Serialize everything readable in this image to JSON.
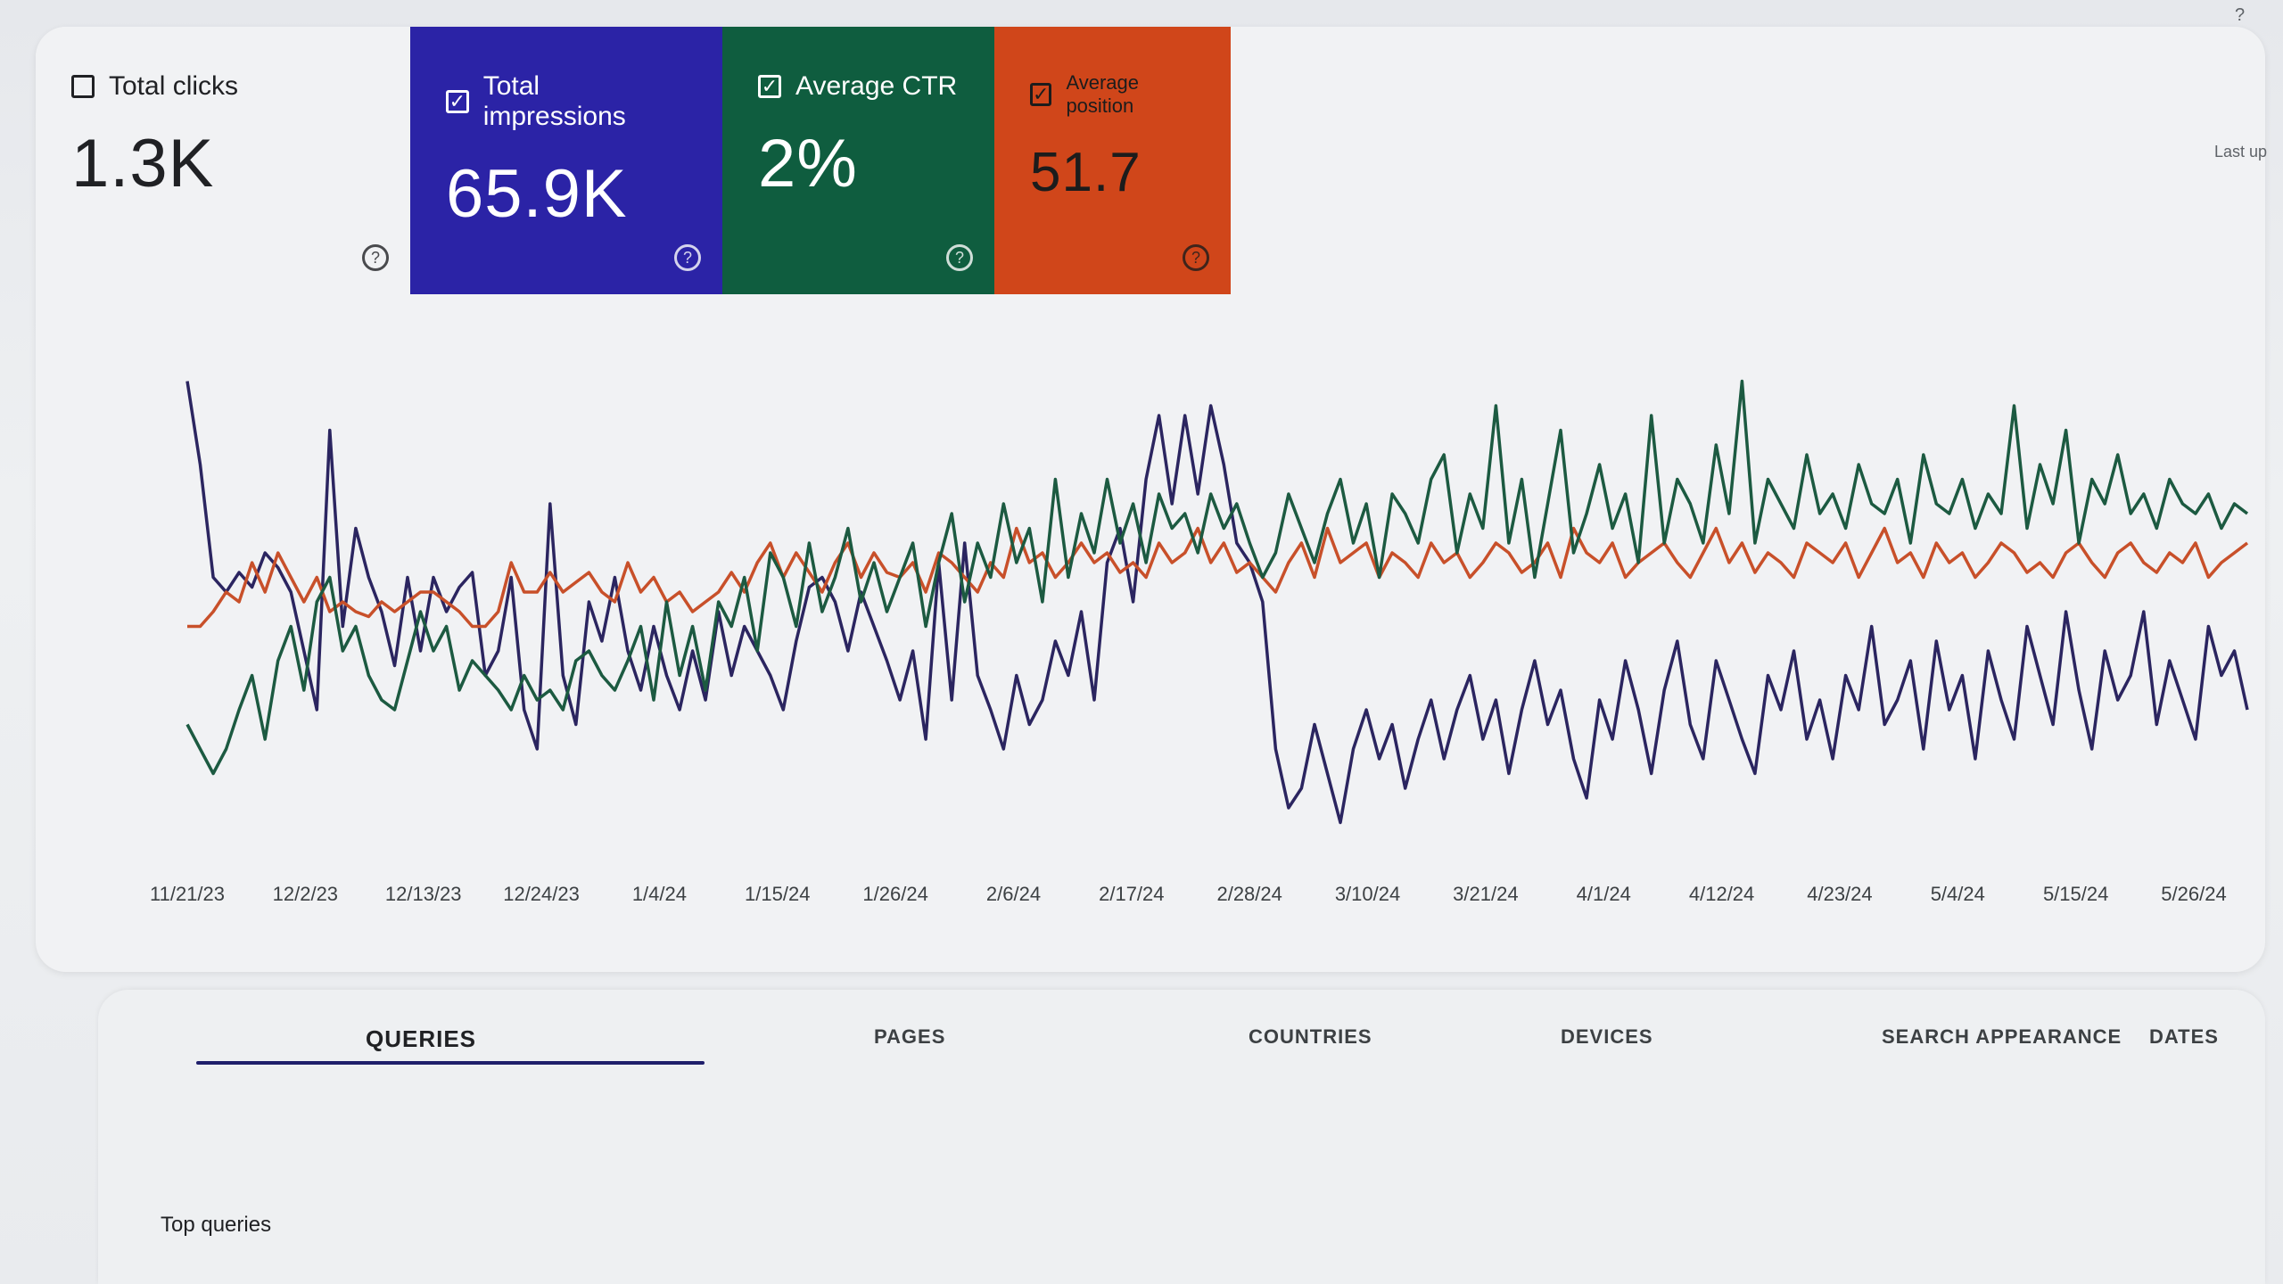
{
  "metrics": {
    "clicks": {
      "label": "Total clicks",
      "value": "1.3K",
      "checked": false,
      "color": "#f1f2f4"
    },
    "impressions": {
      "label": "Total impressions",
      "value": "65.9K",
      "checked": true,
      "color": "#2b23a6"
    },
    "ctr": {
      "label": "Average CTR",
      "value": "2%",
      "checked": true,
      "color": "#0f5d3f"
    },
    "position": {
      "label": "Average position",
      "value": "51.7",
      "checked": true,
      "color": "#d0461a"
    },
    "check_mark": "✓",
    "help_mark": "?"
  },
  "last_updated": "Last up",
  "chart_data": {
    "type": "line",
    "x_tick_labels": [
      "11/21/23",
      "12/2/23",
      "12/13/23",
      "12/24/23",
      "1/4/24",
      "1/15/24",
      "1/26/24",
      "2/6/24",
      "2/17/24",
      "2/28/24",
      "3/10/24",
      "3/21/24",
      "4/1/24",
      "4/12/24",
      "4/23/24",
      "5/4/24",
      "5/15/24",
      "5/26/24"
    ],
    "series": [
      {
        "metric": "impressions",
        "color": "#2b2560",
        "values": [
          95,
          78,
          55,
          52,
          56,
          53,
          60,
          57,
          52,
          40,
          28,
          85,
          45,
          65,
          55,
          48,
          37,
          55,
          40,
          55,
          48,
          53,
          56,
          35,
          40,
          55,
          28,
          20,
          70,
          35,
          25,
          50,
          42,
          55,
          40,
          32,
          45,
          35,
          28,
          40,
          30,
          48,
          35,
          45,
          40,
          35,
          28,
          42,
          53,
          55,
          50,
          40,
          52,
          45,
          38,
          30,
          40,
          22,
          58,
          30,
          62,
          35,
          28,
          20,
          35,
          25,
          30,
          42,
          35,
          48,
          30,
          58,
          65,
          50,
          75,
          88,
          70,
          88,
          72,
          90,
          78,
          62,
          58,
          50,
          20,
          8,
          12,
          25,
          15,
          5,
          20,
          28,
          18,
          25,
          12,
          22,
          30,
          18,
          28,
          35,
          22,
          30,
          15,
          28,
          38,
          25,
          32,
          18,
          10,
          30,
          22,
          38,
          28,
          15,
          32,
          42,
          25,
          18,
          38,
          30,
          22,
          15,
          35,
          28,
          40,
          22,
          30,
          18,
          35,
          28,
          45,
          25,
          30,
          38,
          20,
          42,
          28,
          35,
          18,
          40,
          30,
          22,
          45,
          35,
          25,
          48,
          32,
          20,
          40,
          30,
          35,
          48,
          25,
          38,
          30,
          22,
          45,
          35,
          40,
          28
        ],
        "ylim": [
          0,
          100
        ]
      },
      {
        "metric": "position",
        "color": "#c8502a",
        "values": [
          45,
          45,
          48,
          52,
          50,
          58,
          52,
          60,
          55,
          50,
          55,
          48,
          50,
          48,
          47,
          50,
          48,
          50,
          52,
          52,
          50,
          48,
          45,
          45,
          48,
          58,
          52,
          52,
          56,
          52,
          54,
          56,
          52,
          50,
          58,
          52,
          55,
          50,
          52,
          48,
          50,
          52,
          56,
          52,
          58,
          62,
          55,
          60,
          56,
          52,
          58,
          62,
          55,
          60,
          56,
          55,
          58,
          52,
          60,
          58,
          55,
          52,
          58,
          55,
          65,
          58,
          60,
          55,
          58,
          62,
          58,
          60,
          56,
          58,
          55,
          62,
          58,
          60,
          65,
          58,
          62,
          56,
          58,
          55,
          52,
          58,
          62,
          55,
          65,
          58,
          60,
          62,
          55,
          60,
          58,
          55,
          62,
          58,
          60,
          55,
          58,
          62,
          60,
          56,
          58,
          62,
          55,
          65,
          60,
          58,
          62,
          55,
          58,
          60,
          62,
          58,
          55,
          60,
          65,
          58,
          62,
          56,
          60,
          58,
          55,
          62,
          60,
          58,
          62,
          55,
          60,
          65,
          58,
          60,
          55,
          62,
          58,
          60,
          55,
          58,
          62,
          60,
          56,
          58,
          55,
          60,
          62,
          58,
          55,
          60,
          62,
          58,
          56,
          60,
          58,
          62,
          55,
          58,
          60,
          62
        ],
        "ylim": [
          0,
          100
        ]
      },
      {
        "metric": "ctr",
        "color": "#1c5a41",
        "values": [
          25,
          20,
          15,
          20,
          28,
          35,
          22,
          38,
          45,
          32,
          50,
          55,
          40,
          45,
          35,
          30,
          28,
          38,
          48,
          40,
          45,
          32,
          38,
          35,
          32,
          28,
          35,
          30,
          32,
          28,
          38,
          40,
          35,
          32,
          38,
          45,
          30,
          50,
          35,
          45,
          32,
          50,
          45,
          55,
          40,
          60,
          55,
          45,
          62,
          48,
          55,
          65,
          50,
          58,
          48,
          55,
          62,
          45,
          58,
          68,
          50,
          62,
          55,
          70,
          58,
          65,
          50,
          75,
          55,
          68,
          60,
          75,
          62,
          70,
          58,
          72,
          65,
          68,
          60,
          72,
          65,
          70,
          62,
          55,
          60,
          72,
          65,
          58,
          68,
          75,
          62,
          70,
          55,
          72,
          68,
          62,
          75,
          80,
          60,
          72,
          65,
          90,
          62,
          75,
          55,
          70,
          85,
          60,
          68,
          78,
          65,
          72,
          58,
          88,
          62,
          75,
          70,
          62,
          82,
          68,
          95,
          62,
          75,
          70,
          65,
          80,
          68,
          72,
          65,
          78,
          70,
          68,
          75,
          62,
          80,
          70,
          68,
          75,
          65,
          72,
          68,
          90,
          65,
          78,
          70,
          85,
          62,
          75,
          70,
          80,
          68,
          72,
          65,
          75,
          70,
          68,
          72,
          65,
          70,
          68
        ],
        "ylim": [
          0,
          100
        ]
      }
    ],
    "grid": false,
    "legend": "none"
  },
  "tabs": [
    {
      "label": "QUERIES",
      "active": true
    },
    {
      "label": "PAGES",
      "active": false
    },
    {
      "label": "COUNTRIES",
      "active": false
    },
    {
      "label": "DEVICES",
      "active": false
    },
    {
      "label": "SEARCH APPEARANCE",
      "active": false
    },
    {
      "label": "DATES",
      "active": false
    }
  ],
  "table": {
    "title": "Top queries"
  }
}
